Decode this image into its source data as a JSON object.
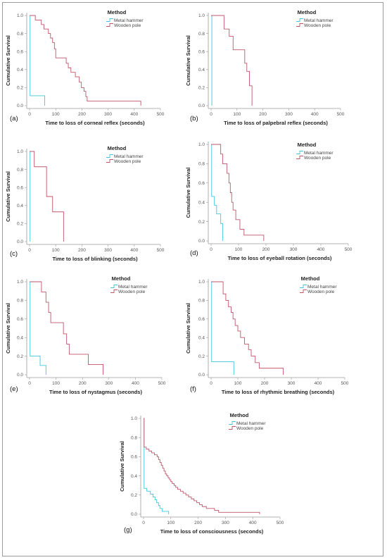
{
  "legend_title": "Method",
  "series_names": [
    "Metal hammer",
    "Wooden pole"
  ],
  "colors": {
    "metal": "#3fc6dc",
    "wooden": "#c0556a",
    "axis": "#9a9a9a",
    "frame": "#9a9a9a"
  },
  "chart_data": [
    {
      "type": "line",
      "panel_label": "(a)",
      "xlabel": "Time to loss of corneal reflex (seconds)",
      "ylabel": "Cumulative Survival",
      "xlim": [
        0,
        500
      ],
      "ylim": [
        0,
        1.0
      ],
      "x_ticks": [
        "0",
        "100",
        "200",
        "300",
        "400",
        "500"
      ],
      "y_ticks": [
        "0.0",
        "0.2",
        "0.4",
        "0.6",
        "0.8",
        "1.0"
      ],
      "legend": [
        "Metal hammer",
        "Wooden pole"
      ],
      "series": [
        {
          "name": "Metal hammer",
          "steps": [
            [
              0,
              1.0
            ],
            [
              2,
              0.11
            ],
            [
              58,
              0.0
            ]
          ]
        },
        {
          "name": "Wooden pole",
          "steps": [
            [
              0,
              1.0
            ],
            [
              22,
              0.95
            ],
            [
              45,
              0.9
            ],
            [
              55,
              0.85
            ],
            [
              72,
              0.8
            ],
            [
              80,
              0.75
            ],
            [
              88,
              0.7
            ],
            [
              95,
              0.63
            ],
            [
              100,
              0.53
            ],
            [
              140,
              0.47
            ],
            [
              148,
              0.42
            ],
            [
              158,
              0.37
            ],
            [
              175,
              0.32
            ],
            [
              190,
              0.26
            ],
            [
              198,
              0.2
            ],
            [
              208,
              0.16
            ],
            [
              215,
              0.1
            ],
            [
              220,
              0.05
            ],
            [
              425,
              0.0
            ]
          ]
        }
      ]
    },
    {
      "type": "line",
      "panel_label": "(b)",
      "xlabel": "Time to loss of palpebral reflex (seconds)",
      "ylabel": "Cumulative Survival",
      "xlim": [
        0,
        500
      ],
      "ylim": [
        0,
        1.0
      ],
      "x_ticks": [
        "0",
        "100",
        "200",
        "300",
        "400",
        "500"
      ],
      "y_ticks": [
        "0.0",
        "0.2",
        "0.4",
        "0.6",
        "0.8",
        "1.0"
      ],
      "legend": [
        "Metal hammer",
        "Wooden pole"
      ],
      "series": [
        {
          "name": "Metal hammer",
          "steps": [
            [
              0,
              1.0
            ],
            [
              3,
              0.0
            ]
          ]
        },
        {
          "name": "Wooden pole",
          "steps": [
            [
              0,
              1.0
            ],
            [
              50,
              0.85
            ],
            [
              70,
              0.77
            ],
            [
              85,
              0.62
            ],
            [
              130,
              0.47
            ],
            [
              138,
              0.38
            ],
            [
              148,
              0.22
            ],
            [
              158,
              0.0
            ]
          ]
        }
      ]
    },
    {
      "type": "line",
      "panel_label": "(c)",
      "xlabel": "Time to loss of blinking (seconds)",
      "ylabel": "Cumulative Survival",
      "xlim": [
        0,
        500
      ],
      "ylim": [
        0,
        1.0
      ],
      "x_ticks": [
        "0",
        "100",
        "200",
        "300",
        "400",
        "500"
      ],
      "y_ticks": [
        "0.0",
        "0.2",
        "0.4",
        "0.6",
        "0.8",
        "1.0"
      ],
      "legend": [
        "Metal hammer",
        "Wooden pole"
      ],
      "series": [
        {
          "name": "Metal hammer",
          "steps": [
            [
              0,
              1.0
            ],
            [
              2,
              0.0
            ]
          ]
        },
        {
          "name": "Wooden pole",
          "steps": [
            [
              0,
              1.0
            ],
            [
              18,
              0.83
            ],
            [
              65,
              0.5
            ],
            [
              88,
              0.33
            ],
            [
              130,
              0.0
            ]
          ]
        }
      ]
    },
    {
      "type": "line",
      "panel_label": "(d)",
      "xlabel": "Time to loss of eyeball rotation (seconds)",
      "ylabel": "Cumulative Survival",
      "xlim": [
        0,
        500
      ],
      "ylim": [
        0,
        1.0
      ],
      "x_ticks": [
        "0",
        "100",
        "200",
        "300",
        "400",
        "500"
      ],
      "y_ticks": [
        "0.0",
        "0.2",
        "0.4",
        "0.6",
        "0.8",
        "1.0"
      ],
      "legend": [
        "Metal hammer",
        "Wooden pole"
      ],
      "series": [
        {
          "name": "Metal hammer",
          "steps": [
            [
              0,
              1.0
            ],
            [
              2,
              0.46
            ],
            [
              12,
              0.37
            ],
            [
              20,
              0.28
            ],
            [
              35,
              0.18
            ],
            [
              42,
              0.0
            ]
          ]
        },
        {
          "name": "Wooden pole",
          "steps": [
            [
              0,
              1.0
            ],
            [
              35,
              0.9
            ],
            [
              42,
              0.8
            ],
            [
              58,
              0.7
            ],
            [
              65,
              0.6
            ],
            [
              70,
              0.5
            ],
            [
              75,
              0.4
            ],
            [
              80,
              0.32
            ],
            [
              90,
              0.22
            ],
            [
              105,
              0.12
            ],
            [
              120,
              0.06
            ],
            [
              192,
              0.0
            ]
          ]
        }
      ]
    },
    {
      "type": "line",
      "panel_label": "(e)",
      "xlabel": "Time to loss of nystagmus (seconds)",
      "ylabel": "Cumulative Survival",
      "xlim": [
        0,
        500
      ],
      "ylim": [
        0,
        1.0
      ],
      "x_ticks": [
        "0",
        "100",
        "200",
        "300",
        "400",
        "500"
      ],
      "y_ticks": [
        "0.0",
        "0.2",
        "0.4",
        "0.6",
        "0.8",
        "1.0"
      ],
      "legend": [
        "Metal hammer",
        "Wooden pole"
      ],
      "series": [
        {
          "name": "Metal hammer",
          "steps": [
            [
              0,
              1.0
            ],
            [
              2,
              0.2
            ],
            [
              40,
              0.1
            ],
            [
              62,
              0.0
            ]
          ]
        },
        {
          "name": "Wooden pole",
          "steps": [
            [
              0,
              1.0
            ],
            [
              45,
              0.89
            ],
            [
              62,
              0.78
            ],
            [
              72,
              0.67
            ],
            [
              80,
              0.56
            ],
            [
              128,
              0.44
            ],
            [
              140,
              0.33
            ],
            [
              150,
              0.22
            ],
            [
              222,
              0.11
            ],
            [
              278,
              0.0
            ]
          ]
        }
      ]
    },
    {
      "type": "line",
      "panel_label": "(f)",
      "xlabel": "Time to loss of rhythmic breathing (seconds)",
      "ylabel": "Cumulative Survival",
      "xlim": [
        0,
        500
      ],
      "ylim": [
        0,
        1.0
      ],
      "x_ticks": [
        "0",
        "100",
        "200",
        "300",
        "400",
        "500"
      ],
      "y_ticks": [
        "0.0",
        "0.2",
        "0.4",
        "0.6",
        "0.8",
        "1.0"
      ],
      "legend": [
        "Metal hammer",
        "Wooden pole"
      ],
      "series": [
        {
          "name": "Metal hammer",
          "steps": [
            [
              0,
              1.0
            ],
            [
              2,
              0.14
            ],
            [
              85,
              0.0
            ]
          ]
        },
        {
          "name": "Wooden pole",
          "steps": [
            [
              0,
              1.0
            ],
            [
              45,
              0.87
            ],
            [
              55,
              0.8
            ],
            [
              65,
              0.73
            ],
            [
              75,
              0.67
            ],
            [
              82,
              0.6
            ],
            [
              90,
              0.53
            ],
            [
              100,
              0.47
            ],
            [
              110,
              0.4
            ],
            [
              125,
              0.33
            ],
            [
              140,
              0.27
            ],
            [
              150,
              0.2
            ],
            [
              165,
              0.13
            ],
            [
              180,
              0.07
            ],
            [
              270,
              0.0
            ]
          ]
        }
      ]
    },
    {
      "type": "line",
      "panel_label": "(g)",
      "xlabel": "Time to loss of consciousness (seconds)",
      "ylabel": "Cumulative Survival",
      "xlim": [
        0,
        500
      ],
      "ylim": [
        0,
        1.0
      ],
      "x_ticks": [
        "0",
        "100",
        "200",
        "300",
        "400",
        "500"
      ],
      "y_ticks": [
        "0.0",
        "0.2",
        "0.4",
        "0.6",
        "0.8",
        "1.0"
      ],
      "legend": [
        "Metal hammer",
        "Wooden pole"
      ],
      "series": [
        {
          "name": "Metal hammer",
          "steps": [
            [
              0,
              1.0
            ],
            [
              2,
              0.27
            ],
            [
              12,
              0.24
            ],
            [
              25,
              0.21
            ],
            [
              35,
              0.18
            ],
            [
              42,
              0.15
            ],
            [
              48,
              0.12
            ],
            [
              55,
              0.09
            ],
            [
              60,
              0.06
            ],
            [
              68,
              0.03
            ],
            [
              92,
              0.0
            ]
          ]
        },
        {
          "name": "Wooden pole",
          "steps": [
            [
              0,
              1.0
            ],
            [
              2,
              0.7
            ],
            [
              10,
              0.68
            ],
            [
              20,
              0.66
            ],
            [
              30,
              0.64
            ],
            [
              40,
              0.62
            ],
            [
              50,
              0.6
            ],
            [
              55,
              0.57
            ],
            [
              60,
              0.54
            ],
            [
              65,
              0.51
            ],
            [
              70,
              0.48
            ],
            [
              75,
              0.45
            ],
            [
              80,
              0.42
            ],
            [
              85,
              0.4
            ],
            [
              90,
              0.38
            ],
            [
              95,
              0.36
            ],
            [
              100,
              0.34
            ],
            [
              105,
              0.32
            ],
            [
              112,
              0.3
            ],
            [
              118,
              0.28
            ],
            [
              125,
              0.26
            ],
            [
              135,
              0.24
            ],
            [
              145,
              0.22
            ],
            [
              155,
              0.2
            ],
            [
              165,
              0.18
            ],
            [
              175,
              0.16
            ],
            [
              185,
              0.14
            ],
            [
              195,
              0.12
            ],
            [
              205,
              0.1
            ],
            [
              215,
              0.08
            ],
            [
              230,
              0.06
            ],
            [
              260,
              0.04
            ],
            [
              275,
              0.02
            ],
            [
              425,
              0.0
            ]
          ]
        }
      ]
    }
  ]
}
